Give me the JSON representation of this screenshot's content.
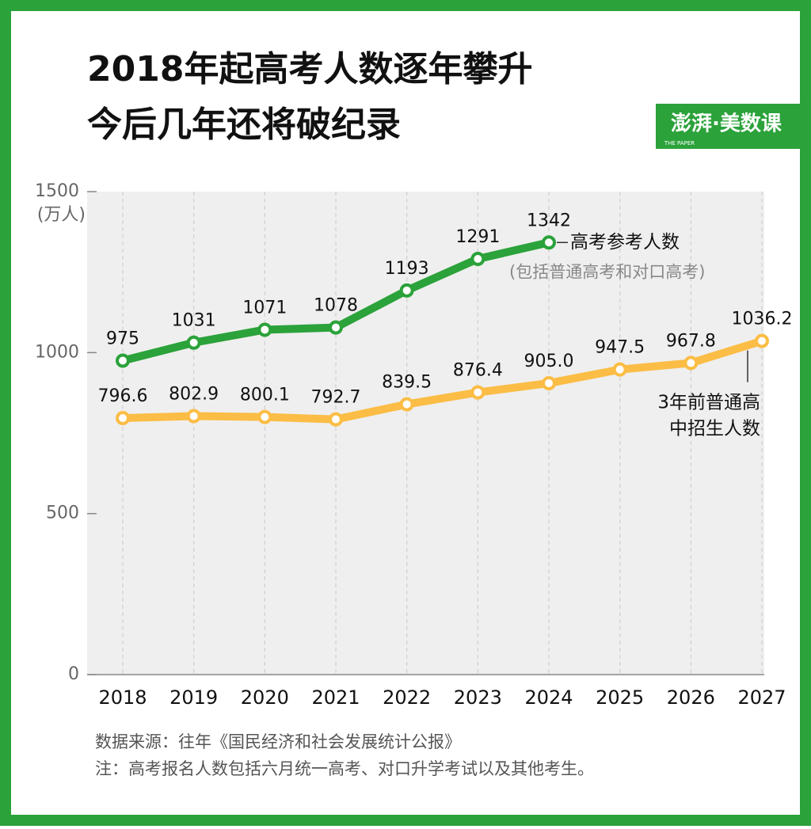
{
  "chart_data": {
    "type": "line",
    "title_lines": [
      "2018年起高考人数逐年攀升",
      "今后几年还将破纪录"
    ],
    "logo": "澎湃·美数课",
    "logo_sub": "THE PAPER",
    "y_unit": "(万人)",
    "categories": [
      "2018",
      "2019",
      "2020",
      "2021",
      "2022",
      "2023",
      "2024",
      "2025",
      "2026",
      "2027"
    ],
    "series": [
      {
        "name": "高考参考人数",
        "note": "(包括普通高考和对口高考)",
        "color": "#2ba23a",
        "values": [
          975,
          1031,
          1071,
          1078,
          1193,
          1291,
          1342,
          null,
          null,
          null
        ]
      },
      {
        "name": "3年前普通高中招生人数",
        "color": "#fbbd45",
        "values": [
          796.6,
          802.9,
          800.1,
          792.7,
          839.5,
          876.4,
          905.0,
          947.5,
          967.8,
          1036.2
        ],
        "value_labels": [
          "796.6",
          "802.9",
          "800.1",
          "792.7",
          "839.5",
          "876.4",
          "905.0",
          "947.5",
          "967.8",
          "1036.2"
        ]
      }
    ],
    "ylim": [
      0,
      1500
    ],
    "yticks": [
      0,
      500,
      1000,
      1500
    ],
    "grid": true,
    "source": "数据来源：往年《国民经济和社会发展统计公报》",
    "footnote": "注：高考报名人数包括六月统一高考、对口升学考试以及其他考生。"
  }
}
